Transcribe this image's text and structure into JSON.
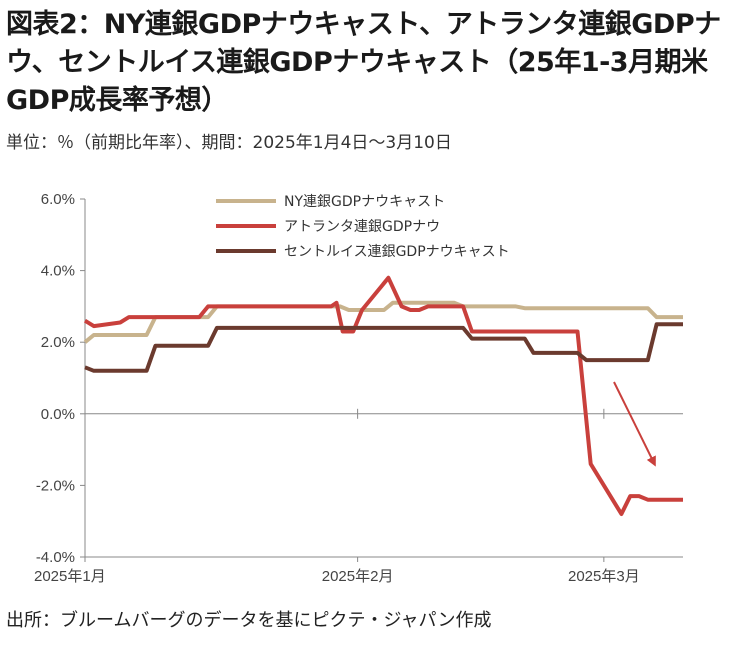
{
  "title": "図表2：NY連銀GDPナウキャスト、アトランタ連銀GDPナウ、セントルイス連銀GDPナウキャスト（25年1-3月期米GDP成長率予想）",
  "subtitle": "単位：％（前期比年率）、期間：2025年1月4日～3月10日",
  "source": "出所：ブルームバーグのデータを基にピクテ・ジャパン作成",
  "chart_data": {
    "type": "line",
    "ylim": [
      -4,
      6
    ],
    "y_ticks": [
      "6.0%",
      "4.0%",
      "2.0%",
      "0.0%",
      "-2.0%",
      "-4.0%"
    ],
    "x_ticks": [
      "2025年1月",
      "2025年2月",
      "2025年3月"
    ],
    "xlim_days": [
      1,
      69
    ],
    "grid": false,
    "legend": "top-center",
    "annotation": "arrow pointing down toward the Atlanta Fed line",
    "series": [
      {
        "name": "NY連銀GDPナウキャスト",
        "color": "#c8b38d",
        "points": [
          [
            1,
            2.0
          ],
          [
            2,
            2.2
          ],
          [
            8,
            2.2
          ],
          [
            9,
            2.7
          ],
          [
            15,
            2.7
          ],
          [
            16,
            3.0
          ],
          [
            30,
            3.0
          ],
          [
            31,
            2.9
          ],
          [
            35,
            2.9
          ],
          [
            36,
            3.1
          ],
          [
            43,
            3.1
          ],
          [
            44,
            3.0
          ],
          [
            50,
            3.0
          ],
          [
            51,
            2.95
          ],
          [
            65,
            2.95
          ],
          [
            66,
            2.7
          ],
          [
            69,
            2.7
          ]
        ]
      },
      {
        "name": "アトランタ連銀GDPナウ",
        "color": "#c9403c",
        "points": [
          [
            1,
            2.6
          ],
          [
            2,
            2.45
          ],
          [
            5,
            2.55
          ],
          [
            6,
            2.7
          ],
          [
            14,
            2.7
          ],
          [
            15,
            3.0
          ],
          [
            29,
            3.0
          ],
          [
            29.6,
            3.1
          ],
          [
            30.3,
            2.3
          ],
          [
            31.5,
            2.3
          ],
          [
            32.5,
            2.9
          ],
          [
            35.5,
            3.8
          ],
          [
            37,
            3.0
          ],
          [
            38,
            2.9
          ],
          [
            39,
            2.9
          ],
          [
            40,
            3.0
          ],
          [
            44,
            3.0
          ],
          [
            45,
            2.3
          ],
          [
            57,
            2.3
          ],
          [
            58.5,
            -1.4
          ],
          [
            62,
            -2.8
          ],
          [
            63,
            -2.3
          ],
          [
            64,
            -2.3
          ],
          [
            65,
            -2.4
          ],
          [
            69,
            -2.4
          ]
        ]
      },
      {
        "name": "セントルイス連銀GDPナウキャスト",
        "color": "#6b3a2e",
        "points": [
          [
            1,
            1.3
          ],
          [
            2,
            1.2
          ],
          [
            8,
            1.2
          ],
          [
            9,
            1.9
          ],
          [
            15,
            1.9
          ],
          [
            16,
            2.4
          ],
          [
            44,
            2.4
          ],
          [
            45,
            2.1
          ],
          [
            51,
            2.1
          ],
          [
            52,
            1.7
          ],
          [
            57,
            1.7
          ],
          [
            58,
            1.5
          ],
          [
            65,
            1.5
          ],
          [
            66,
            2.5
          ],
          [
            69,
            2.5
          ]
        ]
      }
    ]
  }
}
